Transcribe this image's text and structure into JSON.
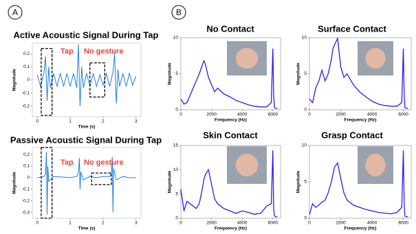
{
  "panel_labels": [
    "A",
    "B"
  ],
  "chart_data": [
    {
      "type": "line",
      "title": "Active Acoustic Signal During Tap",
      "xlabel": "Time (s)",
      "ylabel": "Magnitude",
      "color": "#1f7fe0",
      "annotations": [
        "Tap",
        "No gesture"
      ],
      "x": [
        0,
        0.1,
        0.2,
        0.25,
        0.3,
        0.35,
        0.4,
        0.5,
        0.6,
        0.7,
        0.8,
        0.9,
        1.0,
        1.1,
        1.2,
        1.25,
        1.3,
        1.35,
        1.4,
        1.5,
        1.6,
        1.7,
        1.8,
        1.9,
        2.0,
        2.1,
        2.2,
        2.3,
        2.35,
        2.4,
        2.45,
        2.5,
        2.6,
        2.7,
        2.8,
        2.9,
        3.0
      ],
      "values": [
        0.04,
        -0.05,
        0.05,
        0.18,
        -0.16,
        0.1,
        -0.06,
        0.05,
        -0.05,
        0.05,
        -0.05,
        0.05,
        -0.05,
        0.05,
        -0.06,
        0.27,
        -0.2,
        0.1,
        -0.06,
        0.05,
        -0.05,
        0.05,
        -0.05,
        0.04,
        -0.04,
        0.05,
        -0.05,
        0.06,
        0.2,
        -0.18,
        0.08,
        -0.05,
        0.05,
        -0.05,
        0.05,
        -0.04,
        0.03
      ],
      "xlim": [
        -0.15,
        3.15
      ],
      "xticks": [
        0,
        1,
        2,
        3
      ],
      "ylim": [
        -0.28,
        0.28
      ],
      "yticks": [
        0.2,
        0.1,
        0,
        -0.1,
        -0.2
      ]
    },
    {
      "type": "line",
      "title": "Passive Acoustic Signal During Tap",
      "xlabel": "Time (s)",
      "ylabel": "Magnitude",
      "color": "#1f7fe0",
      "annotations": [
        "Tap",
        "No gesture"
      ],
      "x": [
        0,
        0.2,
        0.25,
        0.28,
        0.3,
        0.32,
        0.35,
        0.5,
        0.8,
        1.0,
        1.2,
        1.25,
        1.28,
        1.3,
        1.32,
        1.4,
        1.6,
        1.8,
        2.0,
        2.2,
        2.25,
        2.28,
        2.3,
        2.32,
        2.4,
        2.6,
        2.8,
        3.0
      ],
      "values": [
        0,
        0.01,
        0.03,
        0.22,
        -0.32,
        0.1,
        -0.03,
        0.01,
        0.005,
        0,
        0.01,
        0.04,
        0.17,
        -0.1,
        0.05,
        -0.02,
        0.01,
        0,
        0.01,
        0.01,
        0.04,
        0.18,
        -0.3,
        0.08,
        -0.02,
        0.01,
        0,
        0
      ],
      "xlim": [
        -0.15,
        3.15
      ],
      "xticks": [
        0,
        1,
        2,
        3
      ],
      "ylim": [
        -0.35,
        0.26
      ],
      "yticks": [
        0.2,
        0.1,
        0,
        -0.1,
        -0.2,
        -0.3
      ]
    },
    {
      "type": "line",
      "title": "No Contact",
      "xlabel": "Frequency (Hz)",
      "ylabel": "Magnitude",
      "color": "#2a1cf0",
      "x": [
        0,
        200,
        400,
        600,
        800,
        1000,
        1200,
        1400,
        1500,
        1600,
        1800,
        2000,
        2200,
        2400,
        2800,
        3200,
        3600,
        4000,
        4400,
        4800,
        5200,
        5600,
        5900,
        6000,
        6050,
        6100,
        6200,
        6300
      ],
      "values": [
        1.5,
        0.8,
        1.0,
        2,
        3,
        4,
        5,
        6.2,
        6.8,
        6.3,
        4.5,
        3.5,
        2.5,
        3,
        2.2,
        1.8,
        1.3,
        1.0,
        0.7,
        0.5,
        0.4,
        0.4,
        1,
        8.5,
        2,
        0.3,
        0.2,
        0.2
      ],
      "xlim": [
        0,
        6500
      ],
      "xticks": [
        0,
        2000,
        4000,
        6000
      ],
      "ylim": [
        0,
        10
      ],
      "yticks": [
        0,
        5,
        10
      ]
    },
    {
      "type": "line",
      "title": "Surface Contact",
      "xlabel": "Frequency (Hz)",
      "ylabel": "Magnitude",
      "color": "#2a1cf0",
      "x": [
        0,
        200,
        400,
        600,
        800,
        1000,
        1200,
        1400,
        1500,
        1600,
        1800,
        2000,
        2200,
        2400,
        2800,
        3200,
        3600,
        4000,
        4400,
        4800,
        5200,
        5600,
        5900,
        6000,
        6050,
        6100,
        6200,
        6300
      ],
      "values": [
        1.5,
        1,
        3,
        4,
        5.5,
        4,
        5,
        7,
        8.5,
        9,
        9.9,
        6,
        4.5,
        5,
        3.5,
        2.5,
        1.8,
        1.2,
        0.8,
        0.6,
        0.5,
        0.5,
        1,
        8.5,
        2,
        0.3,
        0.2,
        0.2
      ],
      "xlim": [
        0,
        6500
      ],
      "xticks": [
        0,
        2000,
        4000,
        6000
      ],
      "ylim": [
        0,
        10
      ],
      "yticks": [
        0,
        5,
        10
      ]
    },
    {
      "type": "line",
      "title": "Skin Contact",
      "xlabel": "Frequency (Hz)",
      "ylabel": "Magnitude",
      "color": "#2a1cf0",
      "x": [
        0,
        200,
        400,
        600,
        800,
        1000,
        1200,
        1400,
        1500,
        1600,
        1800,
        2000,
        2200,
        2400,
        2800,
        3200,
        3600,
        4000,
        4400,
        4800,
        5200,
        5600,
        5900,
        6000,
        6050,
        6100,
        6200,
        6300
      ],
      "values": [
        6,
        1.5,
        3.5,
        3,
        2.5,
        2,
        3,
        6,
        8,
        9,
        10,
        7,
        4,
        3,
        2,
        1.5,
        1,
        1.5,
        1.2,
        0.8,
        1,
        2.5,
        3,
        14,
        2,
        0.5,
        0.3,
        0.3
      ],
      "xlim": [
        0,
        6500
      ],
      "xticks": [
        0,
        2000,
        4000,
        6000
      ],
      "ylim": [
        0,
        15
      ],
      "yticks": [
        0,
        5,
        10,
        15
      ]
    },
    {
      "type": "line",
      "title": "Grasp Contact",
      "xlabel": "Frequency (Hz)",
      "ylabel": "Magnitude",
      "color": "#2a1cf0",
      "x": [
        0,
        200,
        400,
        600,
        800,
        1000,
        1200,
        1400,
        1500,
        1600,
        1800,
        2000,
        2200,
        2400,
        2800,
        3200,
        3600,
        4000,
        4400,
        4800,
        5200,
        5600,
        5900,
        6000,
        6050,
        6100,
        6200,
        6300
      ],
      "values": [
        0.5,
        2,
        1.5,
        1.8,
        2.2,
        2.5,
        3.5,
        5,
        6,
        7,
        7.6,
        5.5,
        3.5,
        2.5,
        1.8,
        1.5,
        1.2,
        1,
        0.8,
        0.7,
        0.6,
        0.8,
        1.5,
        9.3,
        2,
        0.3,
        0.2,
        0.2
      ],
      "xlim": [
        0,
        6500
      ],
      "xticks": [
        0,
        2000,
        4000,
        6000
      ],
      "ylim": [
        0,
        10
      ],
      "yticks": [
        0,
        5,
        10
      ]
    }
  ]
}
